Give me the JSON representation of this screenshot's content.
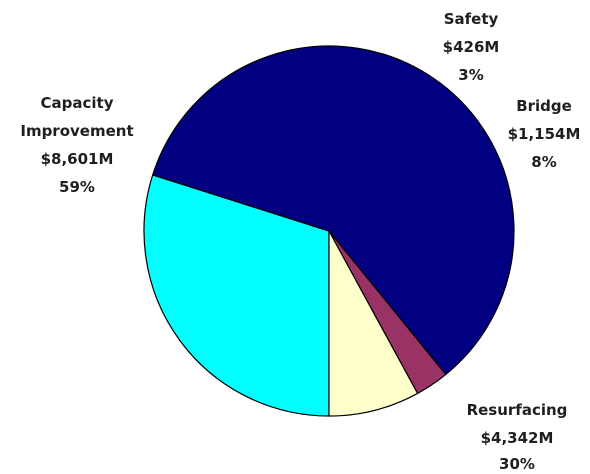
{
  "chart_data": {
    "type": "pie",
    "title": "",
    "slices": [
      {
        "label": "Resurfacing",
        "amount": "$4,342M",
        "percent": "30%",
        "value": 4342,
        "color": "#00ffff"
      },
      {
        "label": "Capacity Improvement",
        "label_lines": [
          "Capacity",
          "Improvement"
        ],
        "amount": "$8,601M",
        "percent": "59%",
        "value": 8601,
        "color": "#000080"
      },
      {
        "label": "Safety",
        "amount": "$426M",
        "percent": "3%",
        "value": 426,
        "color": "#993366"
      },
      {
        "label": "Bridge",
        "amount": "$1,154M",
        "percent": "8%",
        "value": 1154,
        "color": "#ffffcc"
      }
    ]
  }
}
